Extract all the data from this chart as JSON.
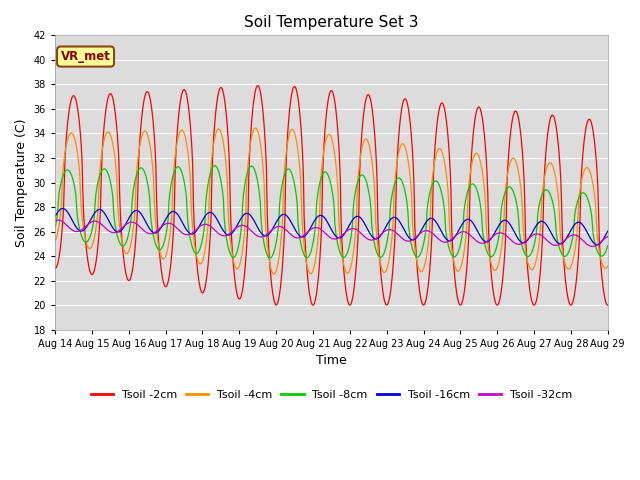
{
  "title": "Soil Temperature Set 3",
  "xlabel": "Time",
  "ylabel": "Soil Temperature (C)",
  "ylim": [
    18,
    42
  ],
  "yticks": [
    18,
    20,
    22,
    24,
    26,
    28,
    30,
    32,
    34,
    36,
    38,
    40,
    42
  ],
  "colors": {
    "Tsoil -2cm": "#FF0000",
    "Tsoil -4cm": "#FF8C00",
    "Tsoil -8cm": "#00CC00",
    "Tsoil -16cm": "#0000EE",
    "Tsoil -32cm": "#CC00CC"
  },
  "plot_bg": "#DCDCDC",
  "grid_color": "#FFFFFF",
  "annotation_text": "VR_met",
  "annotation_bg": "#FFFF99",
  "annotation_border": "#8B4513",
  "annotation_text_color": "#8B0000",
  "figsize": [
    6.4,
    4.8
  ],
  "dpi": 100
}
